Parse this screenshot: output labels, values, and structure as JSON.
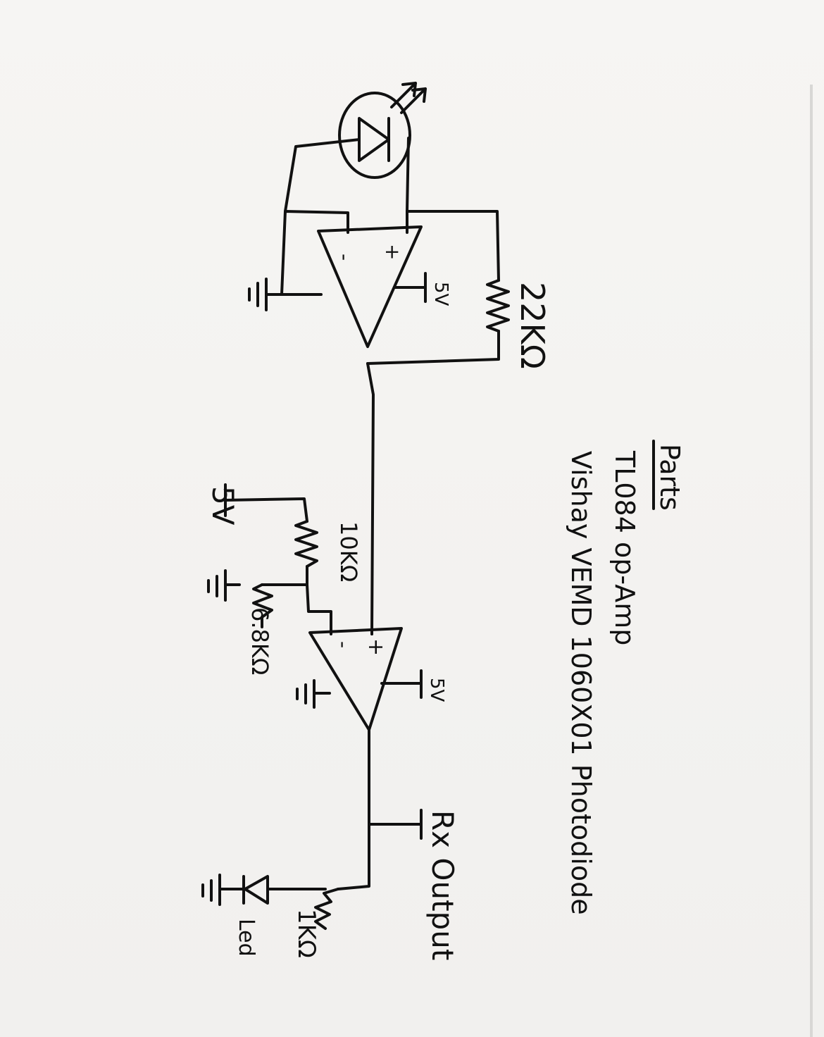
{
  "parts": {
    "heading": "Parts",
    "item_1": "TL084 op-Amp",
    "item_2": "Vishay VEMD 1060X01 Photodiode"
  },
  "stage1": {
    "minus": "-",
    "plus": "+",
    "supply": "5V",
    "feedback_resistor": "22KΩ"
  },
  "stage2": {
    "minus": "-",
    "plus": "+",
    "supply": "5V",
    "r_top": "10KΩ",
    "r_bottom": "6.8KΩ",
    "ref_supply": "5V"
  },
  "output": {
    "label": "Rx Output",
    "led_resistor": "1KΩ",
    "led_label": "Led"
  }
}
